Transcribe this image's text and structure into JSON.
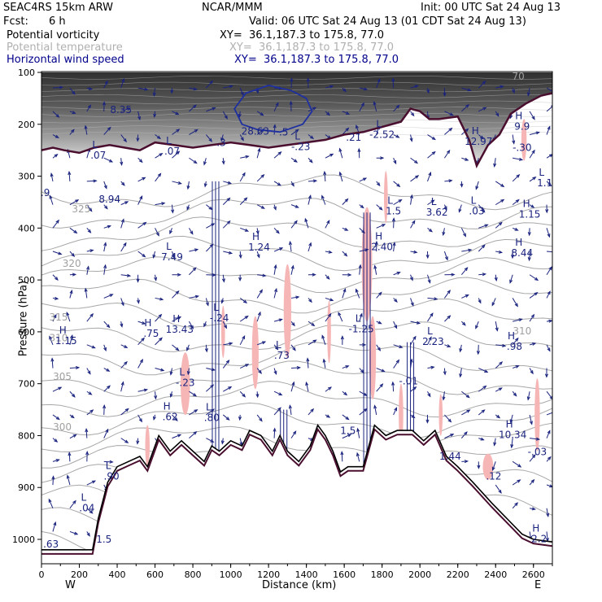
{
  "header": {
    "model": "SEAC4RS 15km ARW",
    "org": "NCAR/MMM",
    "init": "Init: 00 UTC Sat 24 Aug 13",
    "fcst_label": "Fcst:",
    "fcst_value": "6 h",
    "valid": "Valid: 06 UTC Sat 24 Aug 13 (01 CDT Sat 24 Aug 13)"
  },
  "fields": [
    {
      "name": "Potential vorticity",
      "xy": "XY=  36.1,187.3 to 175.8, 77.0",
      "color": "#000000"
    },
    {
      "name": "Potential temperature",
      "xy": "XY=  36.1,187.3 to 175.8, 77.0",
      "color": "#b0b0b0"
    },
    {
      "name": "Horizontal wind speed",
      "xy": "XY=  36.1,187.3 to 175.8, 77.0",
      "color": "#00008b"
    }
  ],
  "chart_data": {
    "type": "cross-section",
    "xlabel": "Distance (km)",
    "ylabel": "Pressure (hPa)",
    "xlim": [
      0,
      2700
    ],
    "ylim": [
      1050,
      100
    ],
    "x_ticks": [
      0,
      200,
      400,
      600,
      800,
      1000,
      1200,
      1400,
      1600,
      1800,
      2000,
      2200,
      2400,
      2600
    ],
    "y_ticks": [
      100,
      200,
      300,
      400,
      500,
      600,
      700,
      800,
      900,
      1000
    ],
    "left_end": "W",
    "right_end": "E",
    "theta_labels": [
      {
        "text": "325",
        "x": 210,
        "p": 370
      },
      {
        "text": "320",
        "x": 160,
        "p": 475
      },
      {
        "text": "315",
        "x": 90,
        "p": 578
      },
      {
        "text": "310",
        "x": 90,
        "p": 618
      },
      {
        "text": "305",
        "x": 110,
        "p": 693
      },
      {
        "text": "300",
        "x": 110,
        "p": 790
      },
      {
        "text": "310",
        "x": 2540,
        "p": 605
      },
      {
        "text": "70",
        "x": 2520,
        "p": 114
      }
    ],
    "extrema": [
      {
        "type": "L",
        "value": ".07",
        "x": 300,
        "p": 265
      },
      {
        "type": "",
        "value": "8.94",
        "x": 360,
        "p": 349
      },
      {
        "type": "L",
        "value": ".07",
        "x": 690,
        "p": 257
      },
      {
        "type": "L",
        "value": "7.49",
        "x": 690,
        "p": 461
      },
      {
        "type": "H",
        "value": "1.24",
        "x": 1150,
        "p": 442
      },
      {
        "type": "L",
        "value": "-.23",
        "x": 1370,
        "p": 248
      },
      {
        "type": "L",
        "value": "-.24",
        "x": 940,
        "p": 578
      },
      {
        "type": "H",
        "value": "13.43",
        "x": 730,
        "p": 600
      },
      {
        "type": "H",
        "value": ".75",
        "x": 580,
        "p": 608
      },
      {
        "type": "H",
        "value": "1.15",
        "x": 130,
        "p": 622
      },
      {
        "type": "L",
        "value": "-.23",
        "x": 760,
        "p": 703
      },
      {
        "type": "H",
        "value": ".62",
        "x": 680,
        "p": 769
      },
      {
        "type": "L",
        "value": ".80",
        "x": 900,
        "p": 770
      },
      {
        "type": "L",
        "value": ".73",
        "x": 1270,
        "p": 650
      },
      {
        "type": "L",
        "value": "1.5",
        "x": 1860,
        "p": 372
      },
      {
        "type": "H",
        "value": "2.40",
        "x": 1800,
        "p": 441
      },
      {
        "type": "L",
        "value": "-1.25",
        "x": 1690,
        "p": 599
      },
      {
        "type": "L",
        "value": "3.62",
        "x": 2090,
        "p": 374
      },
      {
        "type": "L",
        "value": ".03",
        "x": 2300,
        "p": 372
      },
      {
        "type": "L",
        "value": "2.23",
        "x": 2070,
        "p": 624
      },
      {
        "type": "",
        "value": "-.01",
        "x": 1940,
        "p": 700
      },
      {
        "type": "",
        "value": "1.5",
        "x": 1620,
        "p": 795
      },
      {
        "type": "H",
        "value": "8.44",
        "x": 2540,
        "p": 453
      },
      {
        "type": "H",
        "value": ".98",
        "x": 2500,
        "p": 633
      },
      {
        "type": "H",
        "value": "10.34",
        "x": 2490,
        "p": 803
      },
      {
        "type": "",
        "value": "-.03",
        "x": 2620,
        "p": 836
      },
      {
        "type": "L",
        "value": ".90",
        "x": 370,
        "p": 883
      },
      {
        "type": "L",
        "value": ".04",
        "x": 240,
        "p": 944
      },
      {
        "type": "",
        "value": "1.5",
        "x": 330,
        "p": 1005
      },
      {
        "type": "",
        "value": ".63",
        "x": 50,
        "p": 1014
      },
      {
        "type": "",
        "value": "1.44",
        "x": 2160,
        "p": 845
      },
      {
        "type": "",
        "value": ".12",
        "x": 2390,
        "p": 883
      },
      {
        "type": "H",
        "value": "2.2",
        "x": 2630,
        "p": 1004
      },
      {
        "type": "H",
        "value": "9.9",
        "x": 2540,
        "p": 209
      },
      {
        "type": "",
        "value": "-.30",
        "x": 2540,
        "p": 250
      },
      {
        "type": "L",
        "value": "1.1",
        "x": 2660,
        "p": 318
      },
      {
        "type": "H",
        "value": "1.15",
        "x": 2580,
        "p": 378
      },
      {
        "type": "H",
        "value": "12.97",
        "x": 2310,
        "p": 238
      },
      {
        "type": "L",
        "value": "-2.52",
        "x": 1800,
        "p": 225
      },
      {
        "type": "",
        "value": "8.35",
        "x": 420,
        "p": 177
      },
      {
        "type": "",
        "value": "28.63",
        "x": 1130,
        "p": 218
      },
      {
        "type": "",
        "value": ".5",
        "x": 1280,
        "p": 220
      },
      {
        "type": "",
        "value": ".21",
        "x": 1650,
        "p": 230
      },
      {
        "type": "",
        "value": ".3",
        "x": 950,
        "p": 240
      },
      {
        "type": "",
        "value": ".9",
        "x": 20,
        "p": 337
      }
    ],
    "terrain": [
      [
        0,
        1020
      ],
      [
        120,
        1020
      ],
      [
        270,
        1020
      ],
      [
        300,
        960
      ],
      [
        350,
        890
      ],
      [
        400,
        860
      ],
      [
        460,
        850
      ],
      [
        520,
        840
      ],
      [
        560,
        860
      ],
      [
        620,
        800
      ],
      [
        680,
        830
      ],
      [
        740,
        810
      ],
      [
        800,
        830
      ],
      [
        860,
        850
      ],
      [
        900,
        820
      ],
      [
        940,
        830
      ],
      [
        1000,
        810
      ],
      [
        1060,
        820
      ],
      [
        1100,
        790
      ],
      [
        1160,
        800
      ],
      [
        1220,
        830
      ],
      [
        1260,
        800
      ],
      [
        1300,
        830
      ],
      [
        1360,
        850
      ],
      [
        1420,
        820
      ],
      [
        1460,
        780
      ],
      [
        1500,
        800
      ],
      [
        1540,
        830
      ],
      [
        1580,
        870
      ],
      [
        1620,
        860
      ],
      [
        1700,
        860
      ],
      [
        1760,
        780
      ],
      [
        1820,
        800
      ],
      [
        1880,
        790
      ],
      [
        1960,
        790
      ],
      [
        2020,
        810
      ],
      [
        2080,
        790
      ],
      [
        2140,
        840
      ],
      [
        2200,
        860
      ],
      [
        2280,
        890
      ],
      [
        2380,
        930
      ],
      [
        2460,
        960
      ],
      [
        2540,
        990
      ],
      [
        2600,
        1000
      ],
      [
        2700,
        1005
      ]
    ],
    "dynamic_tropopause": [
      [
        0,
        250
      ],
      [
        60,
        245
      ],
      [
        120,
        250
      ],
      [
        200,
        255
      ],
      [
        280,
        245
      ],
      [
        360,
        240
      ],
      [
        440,
        245
      ],
      [
        520,
        250
      ],
      [
        600,
        235
      ],
      [
        700,
        240
      ],
      [
        800,
        245
      ],
      [
        900,
        240
      ],
      [
        1000,
        235
      ],
      [
        1100,
        240
      ],
      [
        1200,
        245
      ],
      [
        1300,
        240
      ],
      [
        1400,
        235
      ],
      [
        1500,
        230
      ],
      [
        1600,
        220
      ],
      [
        1700,
        215
      ],
      [
        1800,
        205
      ],
      [
        1900,
        195
      ],
      [
        1950,
        170
      ],
      [
        2000,
        175
      ],
      [
        2050,
        190
      ],
      [
        2100,
        190
      ],
      [
        2200,
        185
      ],
      [
        2260,
        230
      ],
      [
        2300,
        280
      ],
      [
        2360,
        240
      ],
      [
        2420,
        220
      ],
      [
        2480,
        180
      ],
      [
        2560,
        160
      ],
      [
        2640,
        145
      ],
      [
        2700,
        140
      ]
    ],
    "wind_max_region": [
      [
        1020,
        170
      ],
      [
        1080,
        140
      ],
      [
        1200,
        125
      ],
      [
        1320,
        135
      ],
      [
        1400,
        150
      ],
      [
        1430,
        175
      ],
      [
        1380,
        200
      ],
      [
        1260,
        215
      ],
      [
        1140,
        210
      ],
      [
        1060,
        200
      ]
    ]
  }
}
